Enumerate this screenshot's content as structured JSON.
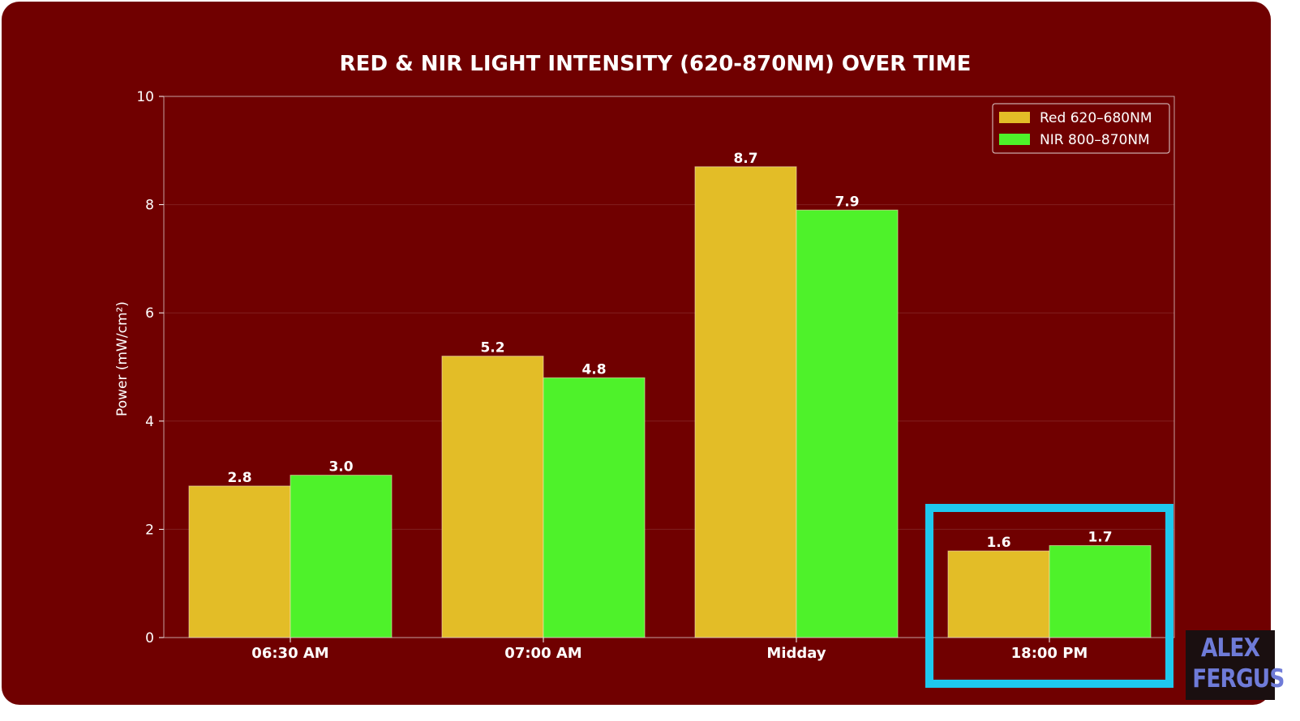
{
  "colors": {
    "background": "#700000",
    "red_series": "#e3bd27",
    "nir_series": "#4ef22a",
    "highlight": "#1ec8ee",
    "text": "#ffffff"
  },
  "chart_data": {
    "type": "bar",
    "title": "RED & NIR LIGHT INTENSITY (620-870NM) OVER TIME",
    "xlabel": "",
    "ylabel": "Power (mW/cm²)",
    "ylim": [
      0,
      10
    ],
    "yticks": [
      0,
      2,
      4,
      6,
      8,
      10
    ],
    "grid": true,
    "legend_position": "top-right",
    "categories": [
      "06:30 AM",
      "07:00 AM",
      "Midday",
      "18:00 PM"
    ],
    "series": [
      {
        "name": "Red 620–680NM",
        "values": [
          2.8,
          5.2,
          8.7,
          1.6
        ],
        "labels": [
          "2.8",
          "5.2",
          "8.7",
          "1.6"
        ]
      },
      {
        "name": "NIR 800–870NM",
        "values": [
          3.0,
          4.8,
          7.9,
          1.7
        ],
        "labels": [
          "3.0",
          "4.8",
          "7.9",
          "1.7"
        ]
      }
    ],
    "highlighted_category": "18:00 PM"
  },
  "watermark": {
    "line1": "ALEX",
    "line2": "FERGUS"
  }
}
